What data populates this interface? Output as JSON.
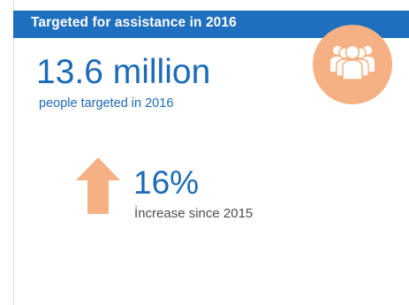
{
  "header": {
    "title": "Targeted for assistance in 2016"
  },
  "icon": {
    "name": "people-group-icon",
    "circle_color": "#f5b183"
  },
  "targeted": {
    "value": "13.6 million",
    "caption": "people targeted in 2016"
  },
  "change": {
    "value": "16%",
    "caption": "İncrease since 2015",
    "direction": "up",
    "arrow_icon": "arrow-up-icon",
    "arrow_color": "#f5b183"
  },
  "colors": {
    "header_bg": "#1f6fbf",
    "accent_text": "#1c6ab8",
    "caption_text": "#4d4d4d"
  }
}
